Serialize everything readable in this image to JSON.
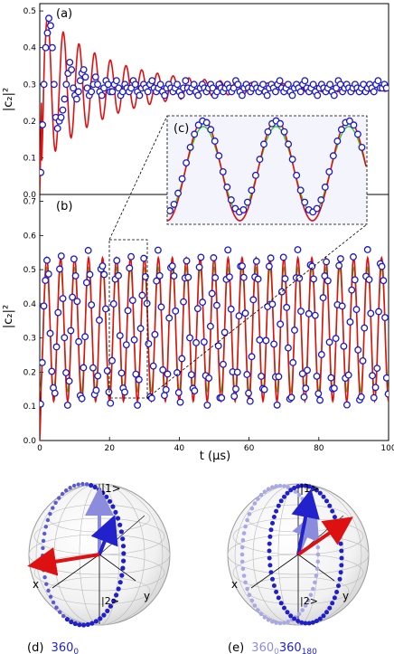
{
  "figure": {
    "panel_a_label": "(a)",
    "panel_b_label": "(b)",
    "panel_c_label": "(c)",
    "xlabel": "t (μs)",
    "ylabel": "|c₂|²"
  },
  "chart_data": [
    {
      "panel": "(a)",
      "type": "scatter",
      "xlim": [
        0,
        100
      ],
      "ylim": [
        0,
        0.52
      ],
      "yticks": [
        "0.0",
        "0.1",
        "0.2",
        "0.3",
        "0.4",
        "0.5"
      ],
      "points": [
        [
          0.3,
          0.06
        ],
        [
          0.8,
          0.19
        ],
        [
          1.2,
          0.3
        ],
        [
          1.7,
          0.4
        ],
        [
          2.2,
          0.44
        ],
        [
          2.6,
          0.48
        ],
        [
          3.1,
          0.46
        ],
        [
          3.6,
          0.4
        ],
        [
          4.1,
          0.3
        ],
        [
          4.6,
          0.21
        ],
        [
          5.1,
          0.18
        ],
        [
          5.6,
          0.2
        ],
        [
          6.1,
          0.21
        ],
        [
          6.6,
          0.23
        ],
        [
          7.1,
          0.26
        ],
        [
          7.6,
          0.3
        ],
        [
          8.1,
          0.33
        ],
        [
          8.6,
          0.36
        ],
        [
          9.1,
          0.34
        ],
        [
          9.6,
          0.29
        ],
        [
          10.1,
          0.27
        ],
        [
          10.6,
          0.26
        ],
        [
          11.1,
          0.28
        ],
        [
          11.6,
          0.31
        ],
        [
          12.1,
          0.33
        ],
        [
          12.6,
          0.34
        ],
        [
          13.1,
          0.32
        ],
        [
          13.6,
          0.29
        ],
        [
          14.2,
          0.27
        ],
        [
          14.8,
          0.28
        ],
        [
          15.4,
          0.3
        ],
        [
          16.0,
          0.32
        ],
        [
          16.6,
          0.3
        ],
        [
          17.2,
          0.28
        ],
        [
          17.8,
          0.27
        ],
        [
          18.4,
          0.29
        ],
        [
          19.0,
          0.31
        ],
        [
          19.6,
          0.3
        ],
        [
          20.2,
          0.28
        ],
        [
          20.8,
          0.28
        ],
        [
          21.4,
          0.3
        ],
        [
          22.0,
          0.31
        ],
        [
          22.6,
          0.29
        ],
        [
          23.2,
          0.27
        ],
        [
          23.8,
          0.28
        ],
        [
          24.4,
          0.3
        ],
        [
          25.0,
          0.29
        ],
        [
          25.6,
          0.28
        ],
        [
          26.2,
          0.29
        ],
        [
          26.8,
          0.31
        ],
        [
          27.4,
          0.3
        ],
        [
          28.0,
          0.28
        ],
        [
          28.6,
          0.27
        ],
        [
          29.2,
          0.29
        ],
        [
          29.8,
          0.3
        ],
        [
          30.4,
          0.29
        ],
        [
          31.0,
          0.28
        ],
        [
          31.6,
          0.3
        ],
        [
          32.2,
          0.31
        ],
        [
          32.8,
          0.29
        ],
        [
          33.4,
          0.28
        ],
        [
          34.0,
          0.29
        ],
        [
          34.6,
          0.3
        ],
        [
          35.2,
          0.28
        ],
        [
          35.8,
          0.27
        ],
        [
          36.4,
          0.29
        ],
        [
          37.0,
          0.3
        ],
        [
          37.6,
          0.29
        ],
        [
          38.2,
          0.28
        ],
        [
          38.8,
          0.29
        ],
        [
          39.4,
          0.3
        ],
        [
          40.0,
          0.28
        ],
        [
          40.6,
          0.27
        ],
        [
          41.2,
          0.29
        ],
        [
          41.8,
          0.31
        ],
        [
          42.4,
          0.29
        ],
        [
          43.0,
          0.28
        ],
        [
          43.6,
          0.29
        ],
        [
          44.2,
          0.3
        ],
        [
          44.8,
          0.28
        ],
        [
          45.4,
          0.27
        ],
        [
          46.0,
          0.29
        ],
        [
          46.6,
          0.3
        ],
        [
          47.2,
          0.29
        ],
        [
          47.8,
          0.28
        ],
        [
          48.4,
          0.29
        ],
        [
          49.0,
          0.3
        ],
        [
          49.6,
          0.29
        ],
        [
          50.2,
          0.27
        ],
        [
          50.8,
          0.28
        ],
        [
          51.4,
          0.3
        ],
        [
          52.0,
          0.29
        ],
        [
          52.6,
          0.28
        ],
        [
          53.2,
          0.29
        ],
        [
          53.8,
          0.3
        ],
        [
          54.4,
          0.29
        ],
        [
          55.0,
          0.28
        ],
        [
          55.6,
          0.29
        ],
        [
          56.2,
          0.31
        ],
        [
          56.8,
          0.3
        ],
        [
          57.4,
          0.28
        ],
        [
          58.0,
          0.27
        ],
        [
          58.6,
          0.29
        ],
        [
          59.2,
          0.3
        ],
        [
          59.8,
          0.29
        ],
        [
          60.4,
          0.28
        ],
        [
          61.0,
          0.29
        ],
        [
          61.6,
          0.3
        ],
        [
          62.2,
          0.29
        ],
        [
          62.8,
          0.28
        ],
        [
          63.4,
          0.29
        ],
        [
          64.0,
          0.3
        ],
        [
          64.6,
          0.28
        ],
        [
          65.2,
          0.27
        ],
        [
          65.8,
          0.29
        ],
        [
          66.4,
          0.3
        ],
        [
          67.0,
          0.29
        ],
        [
          67.6,
          0.28
        ],
        [
          68.2,
          0.3
        ],
        [
          68.8,
          0.31
        ],
        [
          69.4,
          0.29
        ],
        [
          70.0,
          0.28
        ],
        [
          70.6,
          0.29
        ],
        [
          71.2,
          0.3
        ],
        [
          71.8,
          0.28
        ],
        [
          72.4,
          0.27
        ],
        [
          73.0,
          0.29
        ],
        [
          73.6,
          0.3
        ],
        [
          74.2,
          0.29
        ],
        [
          74.8,
          0.28
        ],
        [
          75.4,
          0.3
        ],
        [
          76.0,
          0.31
        ],
        [
          76.6,
          0.29
        ],
        [
          77.2,
          0.28
        ],
        [
          77.8,
          0.29
        ],
        [
          78.4,
          0.3
        ],
        [
          79.0,
          0.28
        ],
        [
          79.6,
          0.27
        ],
        [
          80.2,
          0.29
        ],
        [
          80.8,
          0.3
        ],
        [
          81.4,
          0.29
        ],
        [
          82.0,
          0.28
        ],
        [
          82.6,
          0.29
        ],
        [
          83.2,
          0.3
        ],
        [
          83.8,
          0.28
        ],
        [
          84.4,
          0.27
        ],
        [
          85.0,
          0.29
        ],
        [
          85.6,
          0.31
        ],
        [
          86.2,
          0.3
        ],
        [
          86.8,
          0.28
        ],
        [
          87.4,
          0.29
        ],
        [
          88.0,
          0.3
        ],
        [
          88.6,
          0.29
        ],
        [
          89.2,
          0.28
        ],
        [
          89.8,
          0.29
        ],
        [
          90.4,
          0.3
        ],
        [
          91.0,
          0.29
        ],
        [
          91.6,
          0.28
        ],
        [
          92.2,
          0.29
        ],
        [
          92.8,
          0.3
        ],
        [
          93.4,
          0.28
        ],
        [
          94.0,
          0.29
        ],
        [
          94.6,
          0.3
        ],
        [
          95.2,
          0.29
        ],
        [
          95.8,
          0.28
        ],
        [
          96.4,
          0.3
        ],
        [
          97.0,
          0.31
        ],
        [
          97.6,
          0.29
        ],
        [
          98.2,
          0.29
        ],
        [
          98.8,
          0.3
        ],
        [
          99.4,
          0.29
        ]
      ],
      "model": {
        "mean": 0.29,
        "amp0": 0.21,
        "decay_us": 18,
        "period_us": 4.5,
        "amp_min": 0.008
      }
    },
    {
      "panel": "(b)",
      "type": "line+scatter",
      "xlim": [
        0,
        100
      ],
      "ylim": [
        0,
        0.72
      ],
      "xticks": [
        "0",
        "20",
        "40",
        "60",
        "80",
        "100"
      ],
      "yticks": [
        "0.0",
        "0.1",
        "0.2",
        "0.3",
        "0.4",
        "0.5",
        "0.6",
        "0.7"
      ],
      "model": {
        "mean": 0.325,
        "amp": 0.21,
        "period_us": 4.0
      },
      "series_colors": {
        "data": "#1a1acc",
        "red_curve": "#e01010",
        "green_curve": "#33cc22"
      }
    }
  ],
  "inset": {
    "label": "(c)",
    "x_range": [
      20,
      31
    ]
  },
  "bloch": {
    "left": {
      "caption_label": "(d)",
      "caption_value": "360",
      "caption_sub": "0",
      "ket_one": "|1>",
      "ket_two": "|2>",
      "axis_x": "x",
      "axis_y": "y"
    },
    "right": {
      "caption_label": "(e)",
      "caption_value1": "360",
      "caption_sub1": "0",
      "caption_value2": "360",
      "caption_sub2": "180",
      "ket_one": "|1>",
      "ket_two": "|2>",
      "axis_x": "x",
      "axis_y": "y"
    }
  }
}
